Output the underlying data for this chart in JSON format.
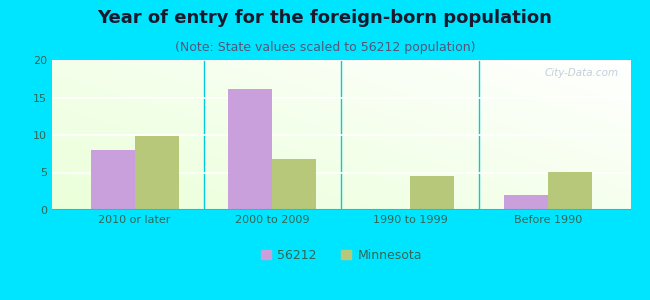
{
  "title": "Year of entry for the foreign-born population",
  "subtitle": "(Note: State values scaled to 56212 population)",
  "categories": [
    "2010 or later",
    "2000 to 2009",
    "1990 to 1999",
    "Before 1990"
  ],
  "series_56212": [
    8.0,
    16.2,
    0.0,
    2.0
  ],
  "series_mn": [
    9.9,
    6.8,
    4.5,
    5.1
  ],
  "color_56212": "#c9a0dc",
  "color_mn": "#b8c87a",
  "ylim": [
    0,
    20
  ],
  "yticks": [
    0,
    5,
    10,
    15,
    20
  ],
  "legend_label_56212": "56212",
  "legend_label_mn": "Minnesota",
  "bg_outer": "#00e5ff",
  "title_fontsize": 13,
  "subtitle_fontsize": 9,
  "tick_fontsize": 8,
  "legend_fontsize": 9,
  "bar_width": 0.32,
  "watermark": "City-Data.com"
}
